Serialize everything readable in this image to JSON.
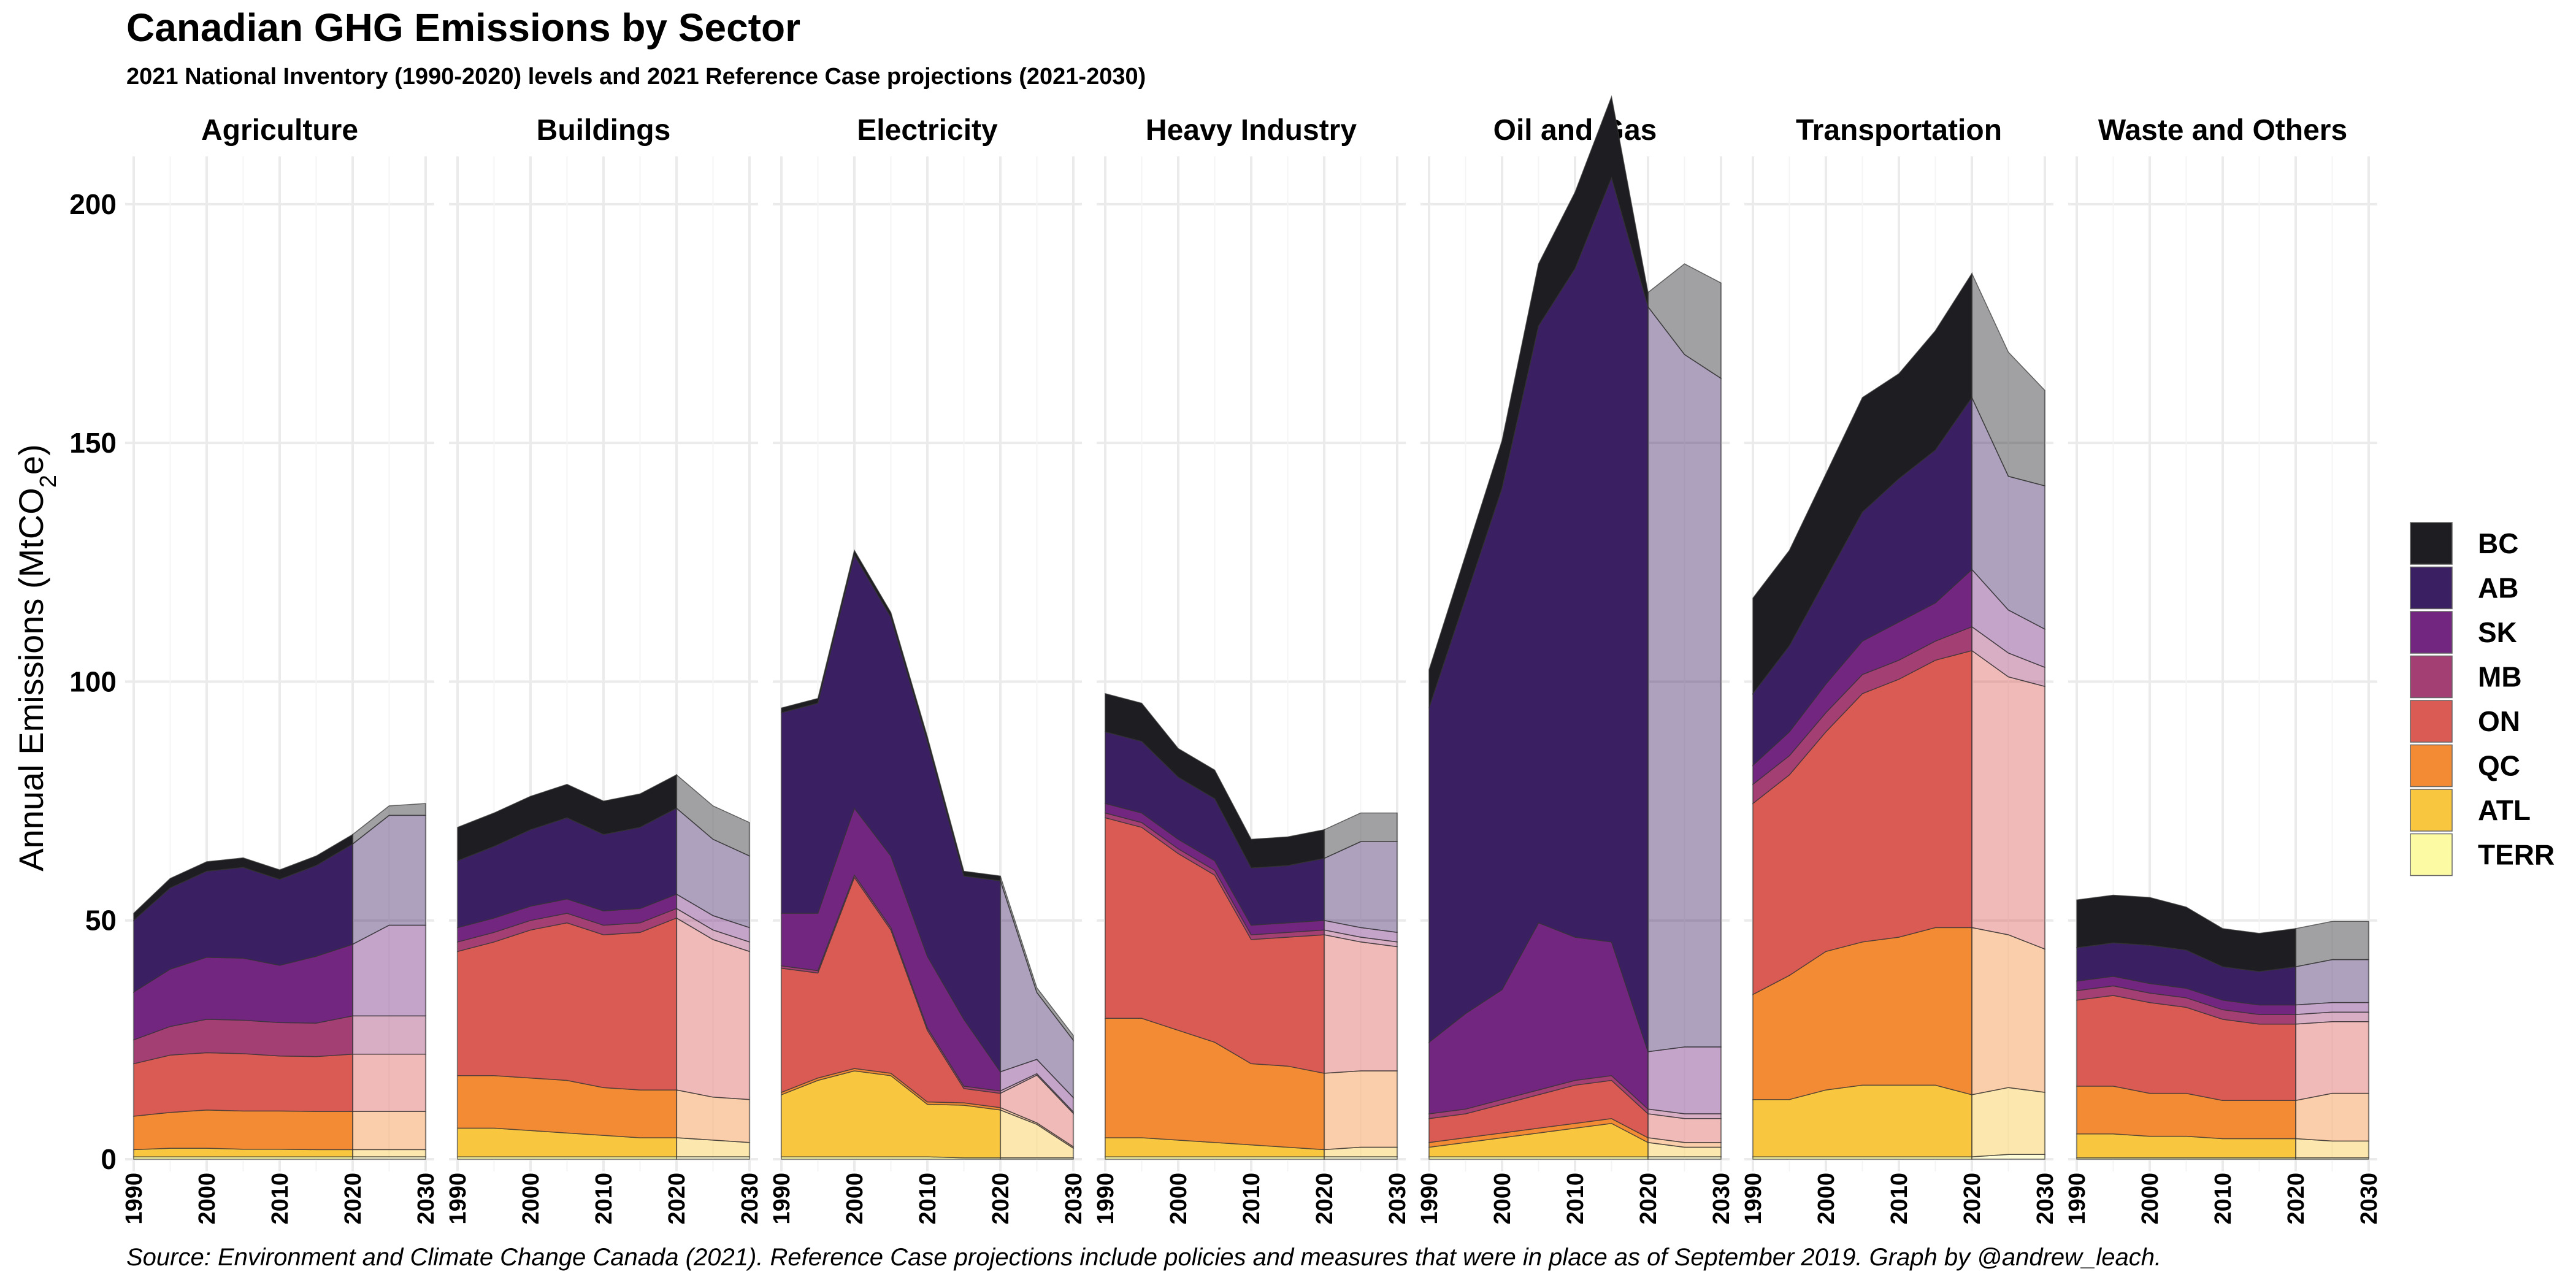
{
  "title": "Canadian GHG Emissions by Sector",
  "subtitle": "2021 National Inventory (1990-2020) levels and 2021 Reference Case projections (2021-2030)",
  "caption": "Source: Environment and Climate Change Canada (2021). Reference Case projections include policies and measures that were in place as of September 2019. Graph by @andrew_leach.",
  "chart_data": {
    "type": "area",
    "stacked": true,
    "facets": [
      "Agriculture",
      "Buildings",
      "Electricity",
      "Heavy Industry",
      "Oil and Gas",
      "Transportation",
      "Waste and Others"
    ],
    "ylabel_main": "Annual Emissions  (MtCO",
    "ylabel_sub": "2",
    "ylabel_tail": "e)",
    "ylim": [
      0,
      210
    ],
    "y_ticks": [
      0,
      50,
      100,
      150,
      200
    ],
    "xlim": [
      1990,
      2030
    ],
    "x_ticks": [
      1990,
      2000,
      2010,
      2020,
      2030
    ],
    "projection_start": 2020,
    "grid": true,
    "legend_position": "right",
    "provinces": [
      "BC",
      "AB",
      "SK",
      "MB",
      "ON",
      "QC",
      "ATL",
      "TERR"
    ],
    "colors": {
      "BC": "#1e1d21",
      "AB": "#3b1f63",
      "SK": "#73267f",
      "MB": "#a33f73",
      "ON": "#d95b54",
      "QC": "#f38a34",
      "ATL": "#f9c640",
      "TERR": "#fcfba3"
    },
    "years": [
      1990,
      1995,
      2000,
      2005,
      2010,
      2015,
      2020,
      2025,
      2030
    ],
    "series": {
      "Agriculture": {
        "TERR": [
          0.5,
          0.5,
          0.5,
          0.5,
          0.5,
          0.5,
          0.5,
          0.5,
          0.5
        ],
        "ATL": [
          1.5,
          1.8,
          1.8,
          1.6,
          1.6,
          1.5,
          1.5,
          1.5,
          1.5
        ],
        "QC": [
          7,
          7.5,
          8,
          8,
          8,
          8,
          8,
          8,
          8
        ],
        "ON": [
          11,
          12,
          12,
          12,
          11.5,
          11.5,
          12,
          12,
          12
        ],
        "MB": [
          5,
          6,
          7,
          7,
          7,
          7,
          8,
          8,
          8
        ],
        "SK": [
          10,
          12,
          13,
          13,
          12,
          14,
          15,
          19,
          19
        ],
        "AB": [
          15,
          17,
          18,
          19,
          18,
          19,
          21,
          23,
          23
        ],
        "BC": [
          1.5,
          2,
          2,
          2,
          2,
          2,
          2,
          2,
          2.5
        ]
      },
      "Buildings": {
        "TERR": [
          0.5,
          0.5,
          0.5,
          0.5,
          0.5,
          0.5,
          0.5,
          0.5,
          0.5
        ],
        "ATL": [
          6,
          6,
          5.5,
          5,
          4.5,
          4,
          4,
          3.5,
          3
        ],
        "QC": [
          11,
          11,
          11,
          11,
          10,
          10,
          10,
          9,
          9
        ],
        "ON": [
          26,
          28,
          31,
          33,
          32,
          33,
          36,
          33,
          31
        ],
        "MB": [
          2,
          2,
          2,
          2,
          2,
          2,
          2,
          2,
          2
        ],
        "SK": [
          3,
          3,
          3,
          3,
          3,
          3,
          3,
          3,
          3
        ],
        "AB": [
          14,
          15,
          16,
          17,
          16,
          17,
          18,
          16,
          15
        ],
        "BC": [
          7,
          7,
          7,
          7,
          7,
          7,
          7,
          7,
          7
        ]
      },
      "Electricity": {
        "TERR": [
          0.5,
          0.5,
          0.5,
          0.5,
          0.5,
          0.3,
          0.3,
          0.3,
          0.3
        ],
        "ATL": [
          13,
          16,
          18,
          17,
          11,
          11,
          10,
          7,
          2
        ],
        "QC": [
          0.5,
          0.5,
          0.5,
          0.5,
          0.5,
          0.5,
          0.5,
          0.3,
          0.3
        ],
        "ON": [
          26,
          22,
          40,
          30,
          15,
          3,
          3,
          10,
          7
        ],
        "MB": [
          0.5,
          0.5,
          0.5,
          0.5,
          0.5,
          0.5,
          0.5,
          0.3,
          0.3
        ],
        "SK": [
          11,
          12,
          14,
          15,
          15,
          14,
          4,
          3,
          3
        ],
        "AB": [
          42,
          44,
          53,
          50,
          45,
          30,
          40,
          14,
          12
        ],
        "BC": [
          1,
          1,
          1,
          1,
          1,
          1,
          1,
          1,
          1
        ]
      },
      "Heavy Industry": {
        "TERR": [
          0.5,
          0.5,
          0.5,
          0.5,
          0.5,
          0.5,
          0.5,
          0.5,
          0.5
        ],
        "ATL": [
          4,
          4,
          3.5,
          3,
          2.5,
          2,
          1.5,
          2,
          2
        ],
        "QC": [
          25,
          25,
          23,
          21,
          17,
          17,
          16,
          16,
          16
        ],
        "ON": [
          42,
          40,
          37,
          35,
          26,
          27,
          29,
          27,
          26
        ],
        "MB": [
          1,
          1,
          1,
          1,
          1,
          1,
          1,
          1,
          1
        ],
        "SK": [
          2,
          2,
          2,
          2,
          2,
          2,
          2,
          2,
          2
        ],
        "AB": [
          15,
          15,
          13,
          13,
          12,
          12,
          13,
          18,
          19
        ],
        "BC": [
          8,
          8,
          6,
          6,
          6,
          6,
          6,
          6,
          6
        ]
      },
      "Oil and Gas": {
        "TERR": [
          0.5,
          0.5,
          0.5,
          0.5,
          0.5,
          0.5,
          0.5,
          0.5,
          0.5
        ],
        "ATL": [
          2,
          3,
          4,
          5,
          6,
          7,
          3,
          2,
          2
        ],
        "QC": [
          1,
          1,
          1,
          1,
          1,
          1,
          1,
          1,
          1
        ],
        "ON": [
          5,
          5,
          6,
          7,
          8,
          8,
          5,
          5,
          5
        ],
        "MB": [
          1,
          1,
          1,
          1,
          1,
          1,
          1,
          1,
          1
        ],
        "SK": [
          15,
          20,
          23,
          35,
          30,
          28,
          12,
          14,
          14
        ],
        "AB": [
          70,
          87,
          105,
          125,
          140,
          160,
          156,
          145,
          140
        ],
        "BC": [
          8,
          9,
          10,
          13,
          16,
          17,
          3,
          19,
          20
        ]
      },
      "Transportation": {
        "TERR": [
          0.5,
          0.5,
          0.5,
          0.5,
          0.5,
          0.5,
          0.5,
          1.0,
          1.0
        ],
        "ATL": [
          12,
          12,
          14,
          15,
          15,
          15,
          13,
          14,
          13
        ],
        "QC": [
          22,
          26,
          29,
          30,
          31,
          33,
          35,
          32,
          30
        ],
        "ON": [
          40,
          42,
          46,
          52,
          54,
          56,
          58,
          54,
          55
        ],
        "MB": [
          4,
          4,
          4,
          4,
          4,
          4,
          5,
          5,
          4
        ],
        "SK": [
          4,
          5,
          6,
          7,
          8,
          8,
          12,
          9,
          8
        ],
        "AB": [
          15,
          18,
          22,
          27,
          30,
          32,
          36,
          28,
          30
        ],
        "BC": [
          20,
          20,
          22,
          24,
          22,
          25,
          26,
          26,
          20
        ]
      },
      "Waste and Others": {
        "TERR": [
          0.3,
          0.3,
          0.3,
          0.3,
          0.3,
          0.3,
          0.3,
          0.3,
          0.3
        ],
        "ATL": [
          5,
          5,
          4.5,
          4.5,
          4,
          4,
          4,
          3.5,
          3.5
        ],
        "QC": [
          10,
          10,
          9,
          9,
          8,
          8,
          8,
          10,
          10
        ],
        "ON": [
          18,
          19,
          19,
          18,
          17,
          16,
          16,
          15,
          15
        ],
        "MB": [
          2,
          2,
          2,
          2,
          2,
          2,
          2,
          2,
          2
        ],
        "SK": [
          2,
          2,
          2,
          2,
          2,
          2,
          2,
          2,
          2
        ],
        "AB": [
          7,
          7,
          8,
          8,
          7,
          7,
          8,
          9,
          9
        ],
        "BC": [
          10,
          10,
          10,
          9,
          8,
          8,
          8,
          8,
          8
        ]
      }
    }
  }
}
